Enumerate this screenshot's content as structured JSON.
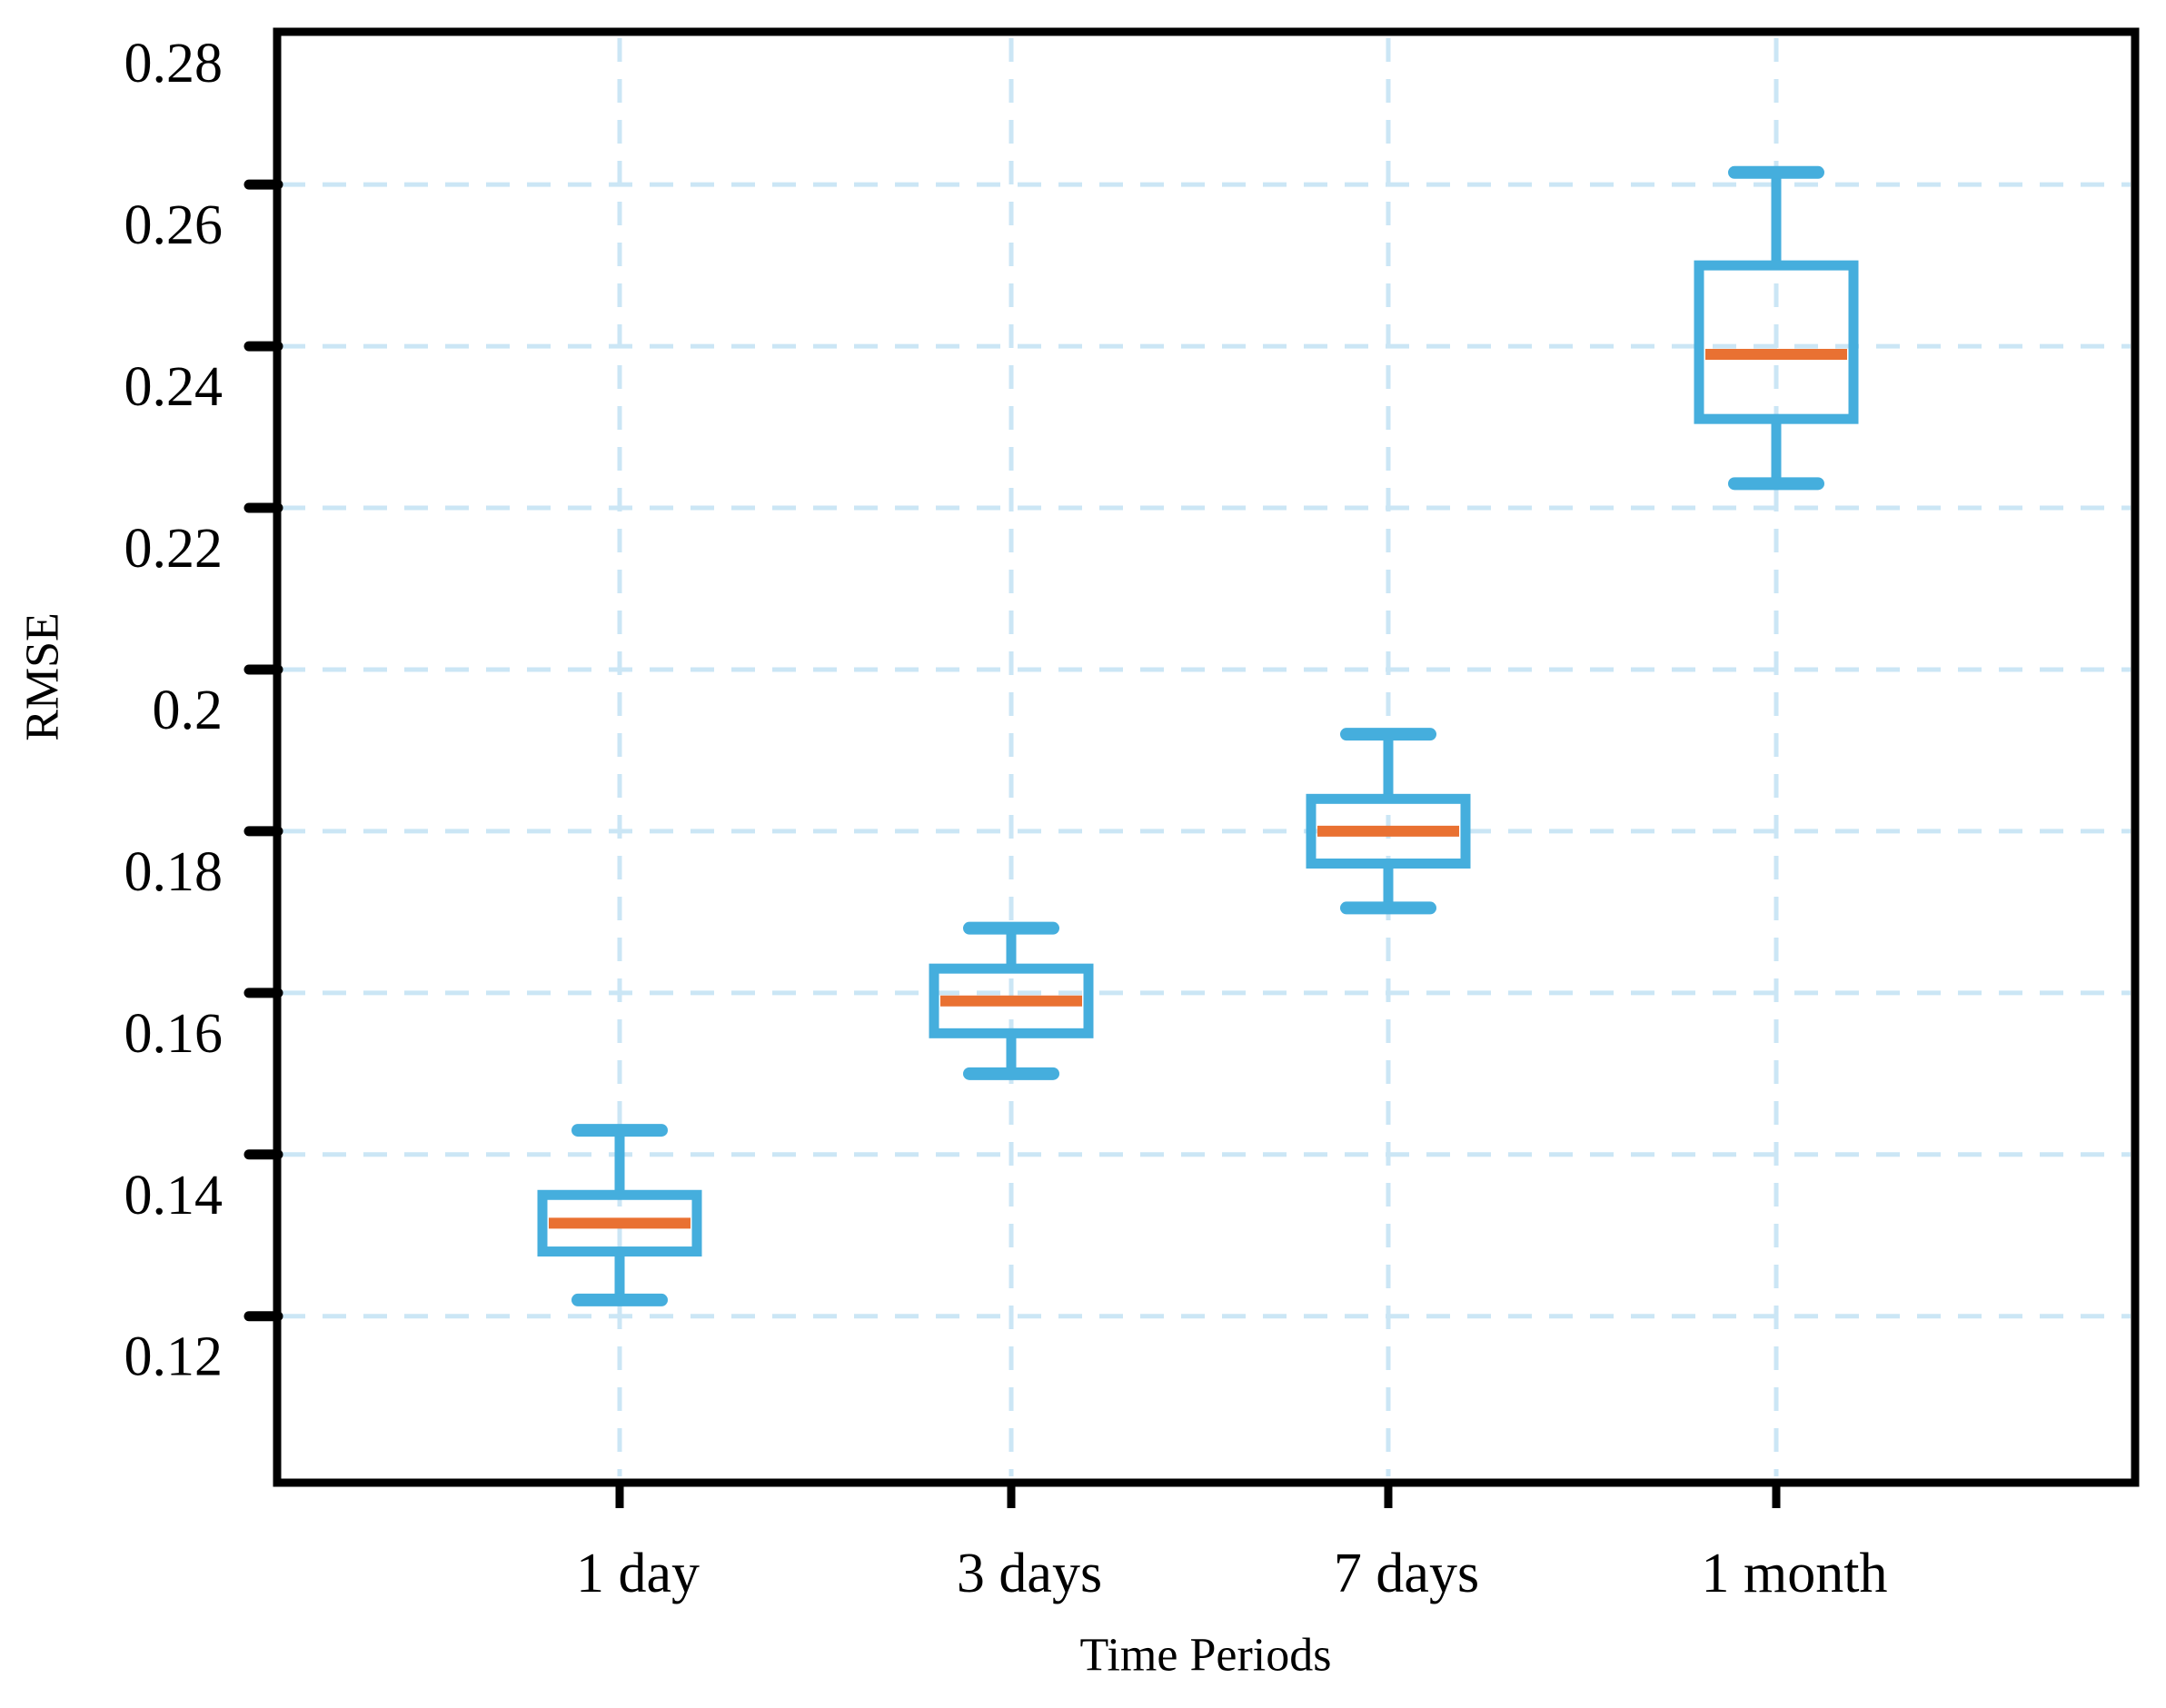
{
  "chart_data": {
    "type": "boxplot",
    "title": "",
    "xlabel": "Time Periods",
    "ylabel": "RMSE",
    "categories": [
      "1 day",
      "3 days",
      "7 days",
      "1 month"
    ],
    "y_tick_labels": [
      "0.28",
      "0.26",
      "0.24",
      "0.22",
      "0.2",
      "0.18",
      "0.16",
      "0.14",
      "0.12"
    ],
    "y_tick_values": [
      0.28,
      0.26,
      0.24,
      0.22,
      0.2,
      0.18,
      0.16,
      0.14,
      0.12
    ],
    "ylim": [
      0.0994,
      0.2789
    ],
    "grid": {
      "show": true,
      "style": "dashed",
      "horizontal": true,
      "vertical": true
    },
    "legend": "none",
    "boxes": [
      {
        "category": "1 day",
        "whisker_low": 0.122,
        "q1": 0.128,
        "median": 0.1315,
        "q3": 0.135,
        "whisker_high": 0.143
      },
      {
        "category": "3 days",
        "whisker_low": 0.15,
        "q1": 0.155,
        "median": 0.159,
        "q3": 0.163,
        "whisker_high": 0.168
      },
      {
        "category": "7 days",
        "whisker_low": 0.1705,
        "q1": 0.176,
        "median": 0.18,
        "q3": 0.184,
        "whisker_high": 0.192
      },
      {
        "category": "1 month",
        "whisker_low": 0.223,
        "q1": 0.231,
        "median": 0.239,
        "q3": 0.25,
        "whisker_high": 0.2615
      }
    ],
    "colors": {
      "box": "#45AEDD",
      "median": "#E97132",
      "grid": "#CBE6F5",
      "axis": "#000000",
      "background": "#FFFFFF"
    }
  }
}
